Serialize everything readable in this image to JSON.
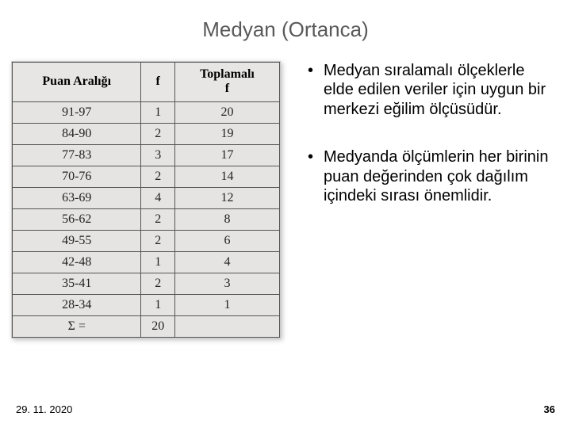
{
  "slide": {
    "title": "Medyan (Ortanca)",
    "date": "29. 11. 2020",
    "page_number": "36"
  },
  "table": {
    "type": "table",
    "background_color": "#e5e4e2",
    "border_color": "#555555",
    "font_family": "Times New Roman",
    "headers": {
      "col1": "Puan Aralığı",
      "col2": "f",
      "col3_line1": "Toplamalı",
      "col3_line2": "f"
    },
    "rows": [
      {
        "range": "91-97",
        "f": "1",
        "cumf": "20"
      },
      {
        "range": "84-90",
        "f": "2",
        "cumf": "19"
      },
      {
        "range": "77-83",
        "f": "3",
        "cumf": "17"
      },
      {
        "range": "70-76",
        "f": "2",
        "cumf": "14"
      },
      {
        "range": "63-69",
        "f": "4",
        "cumf": "12"
      },
      {
        "range": "56-62",
        "f": "2",
        "cumf": "8"
      },
      {
        "range": "49-55",
        "f": "2",
        "cumf": "6"
      },
      {
        "range": "42-48",
        "f": "1",
        "cumf": "4"
      },
      {
        "range": "35-41",
        "f": "2",
        "cumf": "3"
      },
      {
        "range": "28-34",
        "f": "1",
        "cumf": "1"
      }
    ],
    "total_row": {
      "label": "Σ =",
      "f": "20",
      "cumf": ""
    }
  },
  "bullets": {
    "item1": "Medyan sıralamalı ölçeklerle elde edilen veriler için uygun bir merkezi eğilim ölçüsüdür.",
    "item2": "Medyanda ölçümlerin her birinin puan değerinden çok dağılım içindeki sırası önemlidir."
  },
  "colors": {
    "title_color": "#595959",
    "text_color": "#000000",
    "slide_bg": "#ffffff"
  }
}
